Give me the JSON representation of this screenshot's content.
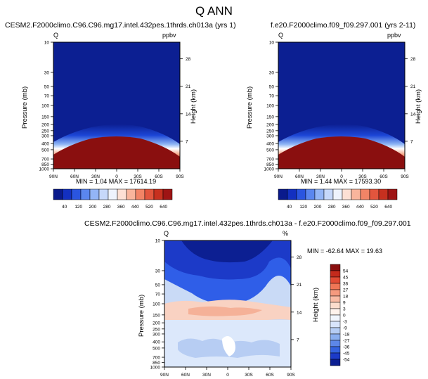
{
  "page_title": "Q ANN",
  "colors": {
    "deep_blue": "#0c1f92",
    "dark_red": "#8a0f0f"
  },
  "chart_data": [
    {
      "type": "heatmap",
      "title": "CESM2.F2000climo.C96.C96.mg17.intel.432pes.1thrds.ch013a (yrs 1)",
      "variable": "Q",
      "units": "ppbv",
      "ylabel": "Pressure (mb)",
      "ylabel_right": "Height (km)",
      "x_ticks": [
        "90N",
        "60N",
        "30N",
        "0",
        "30S",
        "60S",
        "90S"
      ],
      "y_ticks": [
        "10",
        "30",
        "50",
        "70",
        "100",
        "150",
        "200",
        "250",
        "300",
        "400",
        "500",
        "700",
        "850",
        "1000"
      ],
      "y_ticks_right": [
        "28",
        "21",
        "14",
        "7"
      ],
      "y_scale": "log",
      "stats": "MIN =   1.04   MAX = 17614.19",
      "colorbar": [
        "40",
        "120",
        "200",
        "280",
        "360",
        "440",
        "520",
        "640"
      ]
    },
    {
      "type": "heatmap",
      "title": "f.e20.F2000climo.f09_f09.297.001 (yrs 2-11)",
      "variable": "Q",
      "units": "ppbv",
      "ylabel": "Pressure (mb)",
      "ylabel_right": "Height (km)",
      "x_ticks": [
        "90N",
        "60N",
        "30N",
        "0",
        "30S",
        "60S",
        "90S"
      ],
      "y_ticks": [
        "10",
        "30",
        "50",
        "70",
        "100",
        "150",
        "200",
        "250",
        "300",
        "400",
        "500",
        "700",
        "850",
        "1000"
      ],
      "y_ticks_right": [
        "28",
        "21",
        "14",
        "7"
      ],
      "y_scale": "log",
      "stats": "MIN =   1.44   MAX = 17593.30",
      "colorbar": [
        "40",
        "120",
        "200",
        "280",
        "360",
        "440",
        "520",
        "640"
      ]
    },
    {
      "type": "heatmap",
      "title": "CESM2.F2000climo.C96.C96.mg17.intel.432pes.1thrds.ch013a - f.e20.F2000climo.f09_f09.297.001",
      "variable": "Q",
      "units": "%",
      "ylabel": "Pressure (mb)",
      "ylabel_right": "Height (km)",
      "x_ticks": [
        "90N",
        "60N",
        "30N",
        "0",
        "30S",
        "60S",
        "90S"
      ],
      "y_ticks": [
        "10",
        "30",
        "50",
        "70",
        "100",
        "150",
        "200",
        "250",
        "300",
        "400",
        "500",
        "700",
        "850",
        "1000"
      ],
      "y_ticks_right": [
        "28",
        "21",
        "14",
        "7"
      ],
      "y_scale": "log",
      "stats": "MIN = -62.64   MAX =  19.63",
      "colorbar": [
        "54",
        "45",
        "36",
        "27",
        "18",
        "9",
        "3",
        "0",
        "-3",
        "-9",
        "-18",
        "-27",
        "-36",
        "-45",
        "-54"
      ]
    }
  ]
}
